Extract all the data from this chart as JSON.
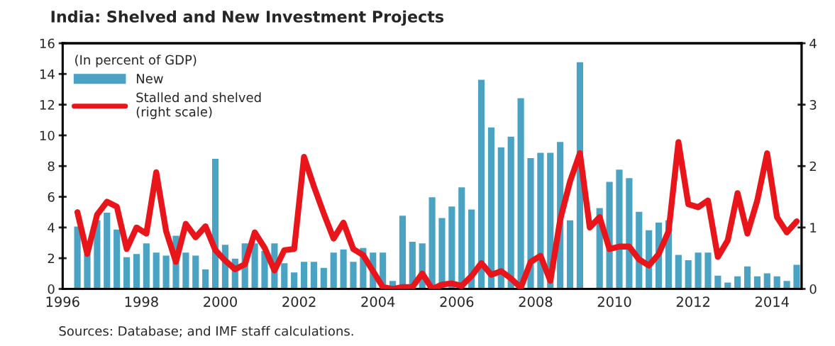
{
  "chart_data": {
    "type": "bar",
    "title": "India: Shelved and New Investment Projects",
    "legend_title": "(In percent of GDP)",
    "annotations": [
      "Sources: Database; and IMF staff calculations."
    ],
    "x": [
      1996.375,
      1996.625,
      1996.875,
      1997.125,
      1997.375,
      1997.625,
      1997.875,
      1998.125,
      1998.375,
      1998.625,
      1998.875,
      1999.125,
      1999.375,
      1999.625,
      1999.875,
      2000.125,
      2000.375,
      2000.625,
      2000.875,
      2001.125,
      2001.375,
      2001.625,
      2001.875,
      2002.125,
      2002.375,
      2002.625,
      2002.875,
      2003.125,
      2003.375,
      2003.625,
      2003.875,
      2004.125,
      2004.375,
      2004.625,
      2004.875,
      2005.125,
      2005.375,
      2005.625,
      2005.875,
      2006.125,
      2006.375,
      2006.625,
      2006.875,
      2007.125,
      2007.375,
      2007.625,
      2007.875,
      2008.125,
      2008.375,
      2008.625,
      2008.875,
      2009.125,
      2009.375,
      2009.625,
      2009.875,
      2010.125,
      2010.375,
      2010.625,
      2010.875,
      2011.125,
      2011.375,
      2011.625,
      2011.875,
      2012.125,
      2012.375,
      2012.625,
      2012.875,
      2013.125,
      2013.375,
      2013.625,
      2013.875,
      2014.125,
      2014.375,
      2014.625
    ],
    "series": [
      {
        "name": "New",
        "color": "#4ba3c3",
        "values": [
          4.1,
          2.3,
          4.5,
          5.0,
          3.9,
          2.1,
          2.3,
          3.0,
          2.4,
          2.2,
          3.5,
          2.4,
          2.2,
          1.3,
          8.5,
          2.9,
          2.0,
          3.0,
          3.0,
          2.5,
          3.0,
          1.7,
          1.1,
          1.8,
          1.8,
          1.4,
          2.4,
          2.6,
          1.8,
          2.7,
          2.4,
          2.4,
          0.55,
          4.8,
          3.1,
          3.0,
          6.0,
          4.65,
          5.4,
          6.65,
          5.2,
          13.65,
          10.55,
          9.25,
          9.95,
          12.45,
          8.55,
          8.9,
          8.9,
          9.6,
          4.5,
          14.8,
          null,
          5.3,
          7.0,
          7.8,
          7.25,
          5.05,
          3.85,
          4.35,
          4.5,
          2.25,
          1.9,
          2.4,
          2.4,
          0.9,
          0.45,
          0.85,
          1.5,
          0.85,
          1.05,
          0.85,
          0.55,
          1.6
        ]
      },
      {
        "name": "Stalled and shelved\n(right scale)",
        "type": "line",
        "axis": "y2",
        "color": "#e8151b",
        "values": [
          1.25,
          0.57,
          1.21,
          1.42,
          1.34,
          0.65,
          1.0,
          0.9,
          1.9,
          0.94,
          0.44,
          1.06,
          0.84,
          1.02,
          0.63,
          0.46,
          0.32,
          0.4,
          0.92,
          0.67,
          0.3,
          0.63,
          0.65,
          2.15,
          1.67,
          1.23,
          0.82,
          1.08,
          0.65,
          0.55,
          0.29,
          0.03,
          0.0,
          0.03,
          0.03,
          0.25,
          0.0,
          0.07,
          0.09,
          0.05,
          0.21,
          0.42,
          0.23,
          0.29,
          0.17,
          0.02,
          0.44,
          0.54,
          0.13,
          1.13,
          1.75,
          2.21,
          1.0,
          1.17,
          0.65,
          0.69,
          0.69,
          0.48,
          0.38,
          0.57,
          0.94,
          2.39,
          1.38,
          1.33,
          1.44,
          0.52,
          0.79,
          1.56,
          0.9,
          1.44,
          2.21,
          1.17,
          0.92,
          1.1
        ]
      }
    ],
    "xlim": [
      1996,
      2014.75
    ],
    "xticks": [
      1996,
      1998,
      2000,
      2002,
      2004,
      2006,
      2008,
      2010,
      2012,
      2014
    ],
    "ylim": [
      0,
      16
    ],
    "yticks": [
      0,
      2,
      4,
      6,
      8,
      10,
      12,
      14,
      16
    ],
    "y2lim": [
      0,
      4
    ],
    "y2ticks": [
      0,
      1,
      2,
      3,
      4
    ],
    "legend": "top left",
    "grid": false
  }
}
